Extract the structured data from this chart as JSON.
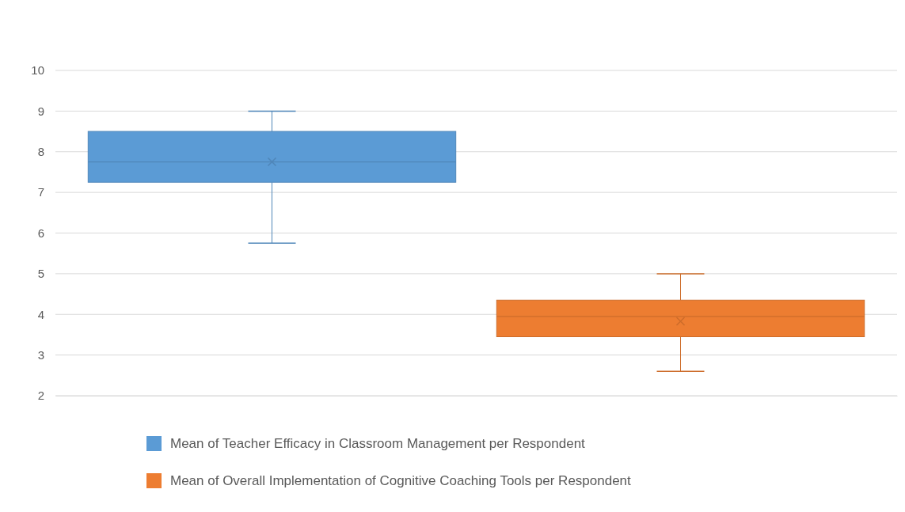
{
  "chart_data": {
    "type": "box",
    "categories": [
      null
    ],
    "series": [
      {
        "name": "Mean of Teacher Efficacy in Classroom Management per Respondent",
        "color": "#5b9bd5",
        "boxes": [
          {
            "low": 5.75,
            "q1": 7.25,
            "median": 7.75,
            "q3": 8.5,
            "high": 9,
            "mean": 7.75
          }
        ]
      },
      {
        "name": "Mean of Overall Implementation of Cognitive Coaching Tools per Respondent",
        "color": "#ed7d31",
        "boxes": [
          {
            "low": 2.6,
            "q1": 3.45,
            "median": 3.95,
            "q3": 4.35,
            "high": 5,
            "mean": 3.83
          }
        ]
      }
    ],
    "ylim": [
      2,
      10
    ],
    "yticks": [
      2,
      3,
      4,
      5,
      6,
      7,
      8,
      9,
      10
    ],
    "grid": "y",
    "legend": "bottom"
  }
}
